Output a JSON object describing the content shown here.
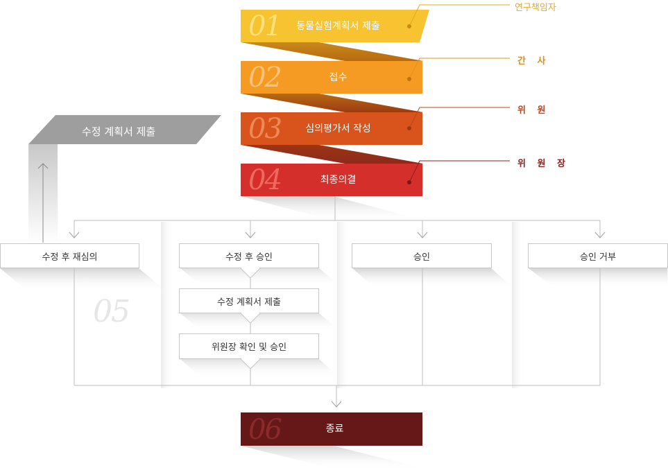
{
  "steps": [
    {
      "num": "01",
      "label": "동물실험계획서 제출",
      "role": "연구책임자",
      "color": "#f7c330",
      "num_color": "#fbe27a"
    },
    {
      "num": "02",
      "label": "접수",
      "role": "간 사",
      "color": "#f59a22",
      "num_color": "#fbc27a"
    },
    {
      "num": "03",
      "label": "심의평가서 작성",
      "role": "위 원",
      "color": "#d9531c",
      "num_color": "#ee8a55"
    },
    {
      "num": "04",
      "label": "최종의결",
      "role": "위 원 장",
      "color": "#d42f2a",
      "num_color": "#ee6a60"
    }
  ],
  "revise_label": "수정 계획서 제출",
  "outcomes": [
    "수정 후 재심의",
    "수정 후 승인",
    "승인",
    "승인 거부"
  ],
  "sub_steps": [
    "수정 계획서 제출",
    "위원장 확인 및 승인"
  ],
  "step05_num": "05",
  "final": {
    "num": "06",
    "label": "종료",
    "color": "#661818",
    "num_color": "#8a2a2a"
  },
  "colors": {
    "line": "#bdbdbd",
    "gray": "#9e9e9e",
    "gray_light": "#d7d7d7",
    "role_line_01": "#e6a820",
    "role_line_03": "#c0451a",
    "role_line_04": "#8e1e1e"
  }
}
